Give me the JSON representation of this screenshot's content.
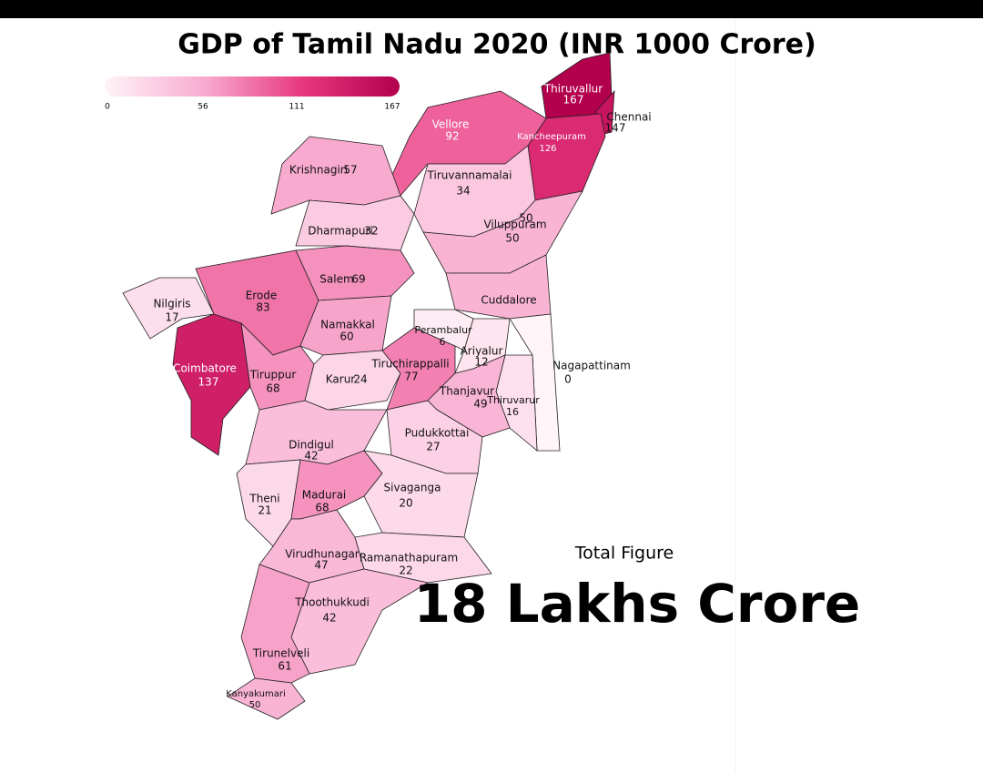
{
  "title": "GDP of Tamil Nadu 2020 (INR 1000 Crore)",
  "colorbar": {
    "clim": [
      0,
      167
    ],
    "ticks": [
      0,
      56,
      111,
      167
    ],
    "colors": [
      "#fff4f8",
      "#f8acd0",
      "#e8397f",
      "#b3004c"
    ]
  },
  "districts": [
    {
      "name": "Thiruvallur",
      "value": 167
    },
    {
      "name": "Chennai",
      "value": 147
    },
    {
      "name": "Kancheepuram",
      "value": 126
    },
    {
      "name": "Vellore",
      "value": 92
    },
    {
      "name": "Tiruvannamalai",
      "value": 34
    },
    {
      "name": "Viluppuram",
      "value": 50
    },
    {
      "name": "Cuddalore",
      "value": 50
    },
    {
      "name": "Krishnagiri",
      "value": 57
    },
    {
      "name": "Dharmapuri",
      "value": 32
    },
    {
      "name": "Salem",
      "value": 69
    },
    {
      "name": "Nilgiris",
      "value": 17
    },
    {
      "name": "Erode",
      "value": 83
    },
    {
      "name": "Coimbatore",
      "value": 137
    },
    {
      "name": "Tiruppur",
      "value": 68
    },
    {
      "name": "Namakkal",
      "value": 60
    },
    {
      "name": "Karur",
      "value": 24
    },
    {
      "name": "Tiruchirappalli",
      "value": 77
    },
    {
      "name": "Perambalur",
      "value": 6
    },
    {
      "name": "Ariyalur",
      "value": 12
    },
    {
      "name": "Nagapattinam",
      "value": 0
    },
    {
      "name": "Thiruvarur",
      "value": 16
    },
    {
      "name": "Thanjavur",
      "value": 49
    },
    {
      "name": "Pudukkottai",
      "value": 27
    },
    {
      "name": "Dindigul",
      "value": 42
    },
    {
      "name": "Theni",
      "value": 21
    },
    {
      "name": "Madurai",
      "value": 68
    },
    {
      "name": "Sivaganga",
      "value": 20
    },
    {
      "name": "Virudhunagar",
      "value": 47
    },
    {
      "name": "Ramanathapuram",
      "value": 22
    },
    {
      "name": "Thoothukkudi",
      "value": 42
    },
    {
      "name": "Tirunelveli",
      "value": 61
    },
    {
      "name": "Kanyakumari",
      "value": 50
    }
  ],
  "total_figure": {
    "label": "Total Figure",
    "text": "18 Lakhs Crore"
  }
}
